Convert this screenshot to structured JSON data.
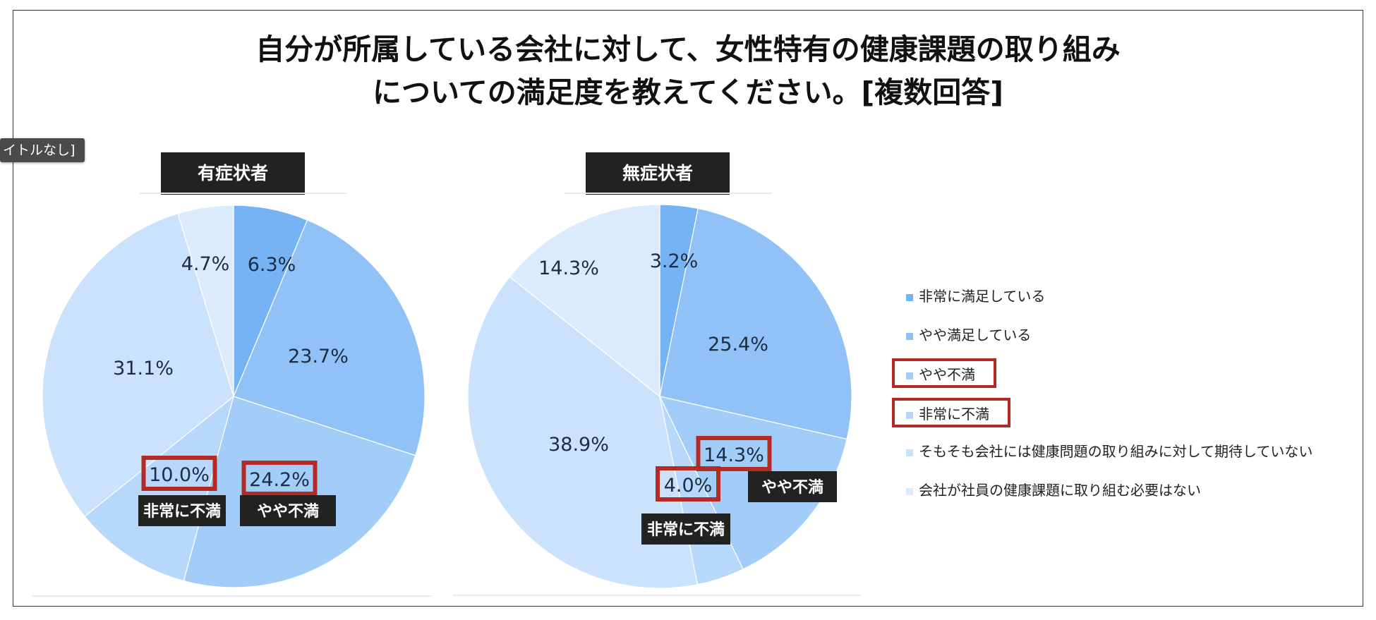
{
  "title_line1": "自分が所属している会社に対して、女性特有の健康課題の取り組み",
  "title_line2": "についての満足度を教えてください。[複数回答]",
  "tooltip": "イトルなし]",
  "colors": {
    "series": [
      "#76b3f5",
      "#90c2f7",
      "#a3cdf9",
      "#b7d7fb",
      "#cbe2fc",
      "#dbebfd"
    ],
    "highlight": "#b52a25",
    "dark_label": "#222222"
  },
  "legend": [
    {
      "label": "非常に満足している",
      "boxed": false
    },
    {
      "label": "やや満足している",
      "boxed": false
    },
    {
      "label": "やや不満",
      "boxed": true
    },
    {
      "label": "非常に不満",
      "boxed": true
    },
    {
      "label": "そもそも会社には健康問題の取り組みに対して期待していない",
      "boxed": false
    },
    {
      "label": "会社が社員の健康課題に取り組む必要はない",
      "boxed": false
    }
  ],
  "chart_data": [
    {
      "type": "pie",
      "title": "有症状者",
      "categories": [
        "非常に満足している",
        "やや満足している",
        "やや不満",
        "非常に不満",
        "そもそも会社には健康問題の取り組みに対して期待していない",
        "会社が社員の健康課題に取り組む必要はない"
      ],
      "values": [
        6.3,
        23.7,
        24.2,
        10.0,
        31.1,
        4.7
      ],
      "labels": [
        "6.3%",
        "23.7%",
        "24.2%",
        "10.0%",
        "31.1%",
        "4.7%"
      ],
      "callouts": [
        {
          "slice": 2,
          "text": "やや不満"
        },
        {
          "slice": 3,
          "text": "非常に不満"
        }
      ]
    },
    {
      "type": "pie",
      "title": "無症状者",
      "categories": [
        "非常に満足している",
        "やや満足している",
        "やや不満",
        "非常に不満",
        "そもそも会社には健康問題の取り組みに対して期待していない",
        "会社が社員の健康課題に取り組む必要はない"
      ],
      "values": [
        3.2,
        25.4,
        14.3,
        4.0,
        38.9,
        14.3
      ],
      "labels": [
        "3.2%",
        "25.4%",
        "14.3%",
        "4.0%",
        "38.9%",
        "14.3%"
      ],
      "callouts": [
        {
          "slice": 2,
          "text": "やや不満"
        },
        {
          "slice": 3,
          "text": "非常に不満"
        }
      ]
    }
  ]
}
